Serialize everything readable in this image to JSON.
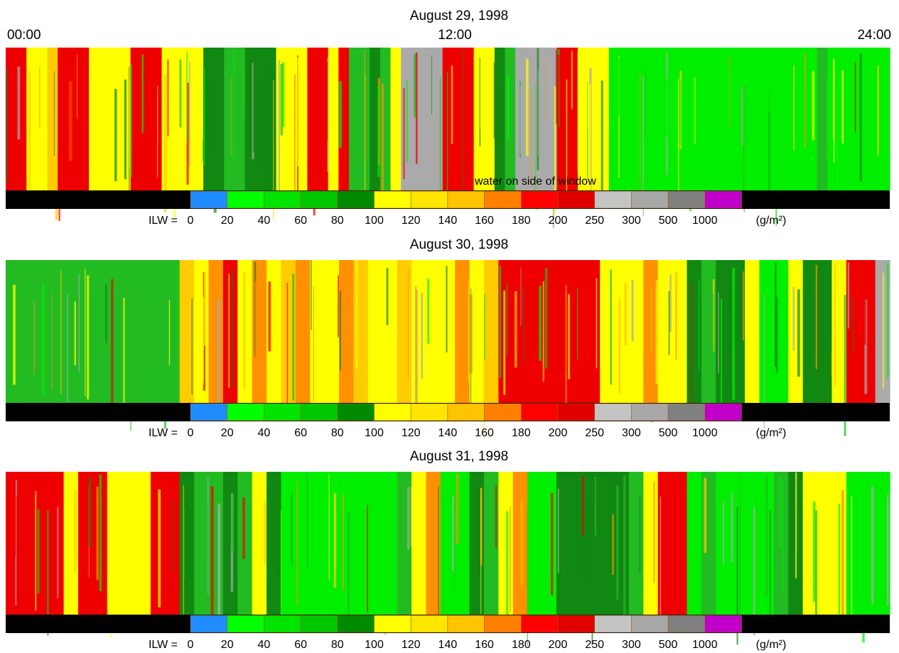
{
  "header": {
    "times": [
      "00:00",
      "12:00",
      "24:00"
    ]
  },
  "legend": {
    "prefix": "ILW =",
    "labels": [
      "0",
      "20",
      "40",
      "60",
      "80",
      "100",
      "120",
      "140",
      "160",
      "180",
      "200",
      "250",
      "300",
      "500",
      "1000"
    ],
    "unit": "(g/m²)",
    "colors": [
      "#1e8cff",
      "#00ff00",
      "#00e400",
      "#00c800",
      "#008a00",
      "#ffff00",
      "#ffe600",
      "#ffc400",
      "#ff8000",
      "#ff0000",
      "#e00000",
      "#c4c4c4",
      "#a8a8a8",
      "#808080",
      "#c000c8"
    ]
  },
  "panels": [
    {
      "title": "August 29, 1998",
      "annotation": "water on side of window"
    },
    {
      "title": "August 30, 1998"
    },
    {
      "title": "August 31, 1998"
    }
  ]
}
